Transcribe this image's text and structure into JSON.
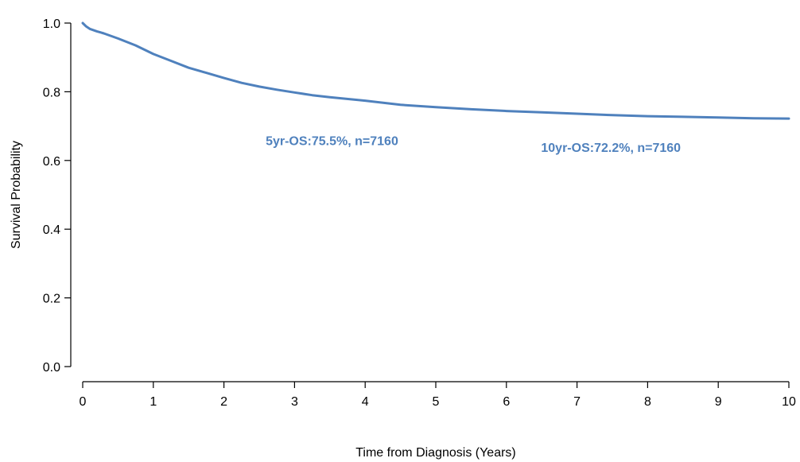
{
  "chart_data": {
    "type": "line",
    "title": "",
    "xlabel": "Time from Diagnosis (Years)",
    "ylabel": "Survival Probability",
    "xlim": [
      0,
      10
    ],
    "ylim": [
      0,
      1
    ],
    "x_ticks": [
      "0",
      "1",
      "2",
      "3",
      "4",
      "5",
      "6",
      "7",
      "8",
      "9",
      "10"
    ],
    "y_ticks": [
      "0.0",
      "0.2",
      "0.4",
      "0.6",
      "0.8",
      "1.0"
    ],
    "grid": false,
    "line_color": "#4f81bd",
    "series": [
      {
        "x": [
          0,
          0.05,
          0.1,
          0.2,
          0.3,
          0.5,
          0.75,
          1.0,
          1.25,
          1.5,
          1.75,
          2.0,
          2.25,
          2.5,
          2.75,
          3.0,
          3.25,
          3.5,
          4.0,
          4.5,
          5.0,
          5.5,
          6.0,
          6.5,
          7.0,
          7.5,
          8.0,
          8.5,
          9.0,
          9.5,
          10.0
        ],
        "y": [
          1.0,
          0.99,
          0.983,
          0.976,
          0.97,
          0.955,
          0.935,
          0.91,
          0.89,
          0.87,
          0.855,
          0.84,
          0.826,
          0.815,
          0.806,
          0.798,
          0.79,
          0.784,
          0.774,
          0.762,
          0.755,
          0.749,
          0.744,
          0.74,
          0.736,
          0.732,
          0.729,
          0.727,
          0.725,
          0.723,
          0.722
        ]
      }
    ],
    "annotations": [
      {
        "text": "5yr-OS:75.5%, n=7160",
        "x": 3.53,
        "y": 0.645
      },
      {
        "text": "10yr-OS:72.2%, n=7160",
        "x": 7.48,
        "y": 0.625
      }
    ]
  }
}
